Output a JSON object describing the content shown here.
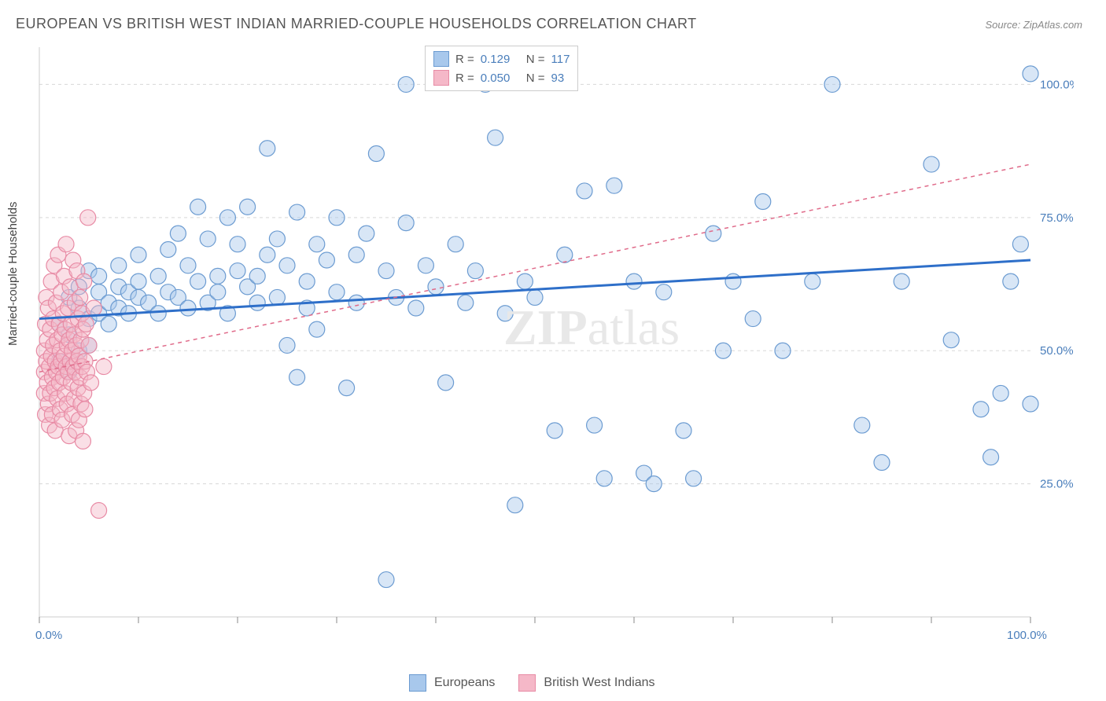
{
  "title": "EUROPEAN VS BRITISH WEST INDIAN MARRIED-COUPLE HOUSEHOLDS CORRELATION CHART",
  "source": "Source: ZipAtlas.com",
  "watermark": "ZIPatlas",
  "ylabel": "Married-couple Households",
  "chart": {
    "type": "scatter",
    "background_color": "#ffffff",
    "grid_color": "#d8d8d8",
    "border_color": "#cccccc",
    "tick_color": "#888888",
    "axis_text_color": "#4a7ebb",
    "xlim": [
      0,
      100
    ],
    "ylim": [
      0,
      107
    ],
    "x_ticks": [
      0,
      10,
      20,
      30,
      40,
      50,
      60,
      70,
      80,
      90,
      100
    ],
    "y_grid_vals": [
      25,
      50,
      75,
      100
    ],
    "x_labels": [
      {
        "val": 0,
        "text": "0.0%"
      },
      {
        "val": 100,
        "text": "100.0%"
      }
    ],
    "y_labels": [
      {
        "val": 25,
        "text": "25.0%"
      },
      {
        "val": 50,
        "text": "50.0%"
      },
      {
        "val": 75,
        "text": "75.0%"
      },
      {
        "val": 100,
        "text": "100.0%"
      }
    ],
    "marker_radius": 10,
    "marker_opacity": 0.45,
    "series": [
      {
        "name": "Europeans",
        "color_fill": "#a8c8ec",
        "color_stroke": "#6b9bd1",
        "trend_color": "#2e6fc9",
        "trend_width": 3,
        "trend_dash": "none",
        "R": "0.129",
        "N": "117",
        "trend": {
          "x1": 0,
          "y1": 56,
          "x2": 100,
          "y2": 67
        },
        "points": [
          [
            2,
            55
          ],
          [
            2,
            48
          ],
          [
            3,
            60
          ],
          [
            3,
            53
          ],
          [
            3,
            46
          ],
          [
            4,
            58
          ],
          [
            4,
            62
          ],
          [
            4,
            50
          ],
          [
            5,
            65
          ],
          [
            5,
            56
          ],
          [
            5,
            51
          ],
          [
            6,
            61
          ],
          [
            6,
            57
          ],
          [
            6,
            64
          ],
          [
            7,
            59
          ],
          [
            7,
            55
          ],
          [
            8,
            62
          ],
          [
            8,
            66
          ],
          [
            8,
            58
          ],
          [
            9,
            61
          ],
          [
            9,
            57
          ],
          [
            10,
            60
          ],
          [
            10,
            63
          ],
          [
            10,
            68
          ],
          [
            11,
            59
          ],
          [
            12,
            64
          ],
          [
            12,
            57
          ],
          [
            13,
            61
          ],
          [
            13,
            69
          ],
          [
            14,
            60
          ],
          [
            14,
            72
          ],
          [
            15,
            58
          ],
          [
            15,
            66
          ],
          [
            16,
            63
          ],
          [
            16,
            77
          ],
          [
            17,
            59
          ],
          [
            17,
            71
          ],
          [
            18,
            64
          ],
          [
            18,
            61
          ],
          [
            19,
            75
          ],
          [
            19,
            57
          ],
          [
            20,
            65
          ],
          [
            20,
            70
          ],
          [
            21,
            62
          ],
          [
            21,
            77
          ],
          [
            22,
            64
          ],
          [
            22,
            59
          ],
          [
            23,
            68
          ],
          [
            23,
            88
          ],
          [
            24,
            60
          ],
          [
            24,
            71
          ],
          [
            25,
            51
          ],
          [
            25,
            66
          ],
          [
            26,
            76
          ],
          [
            26,
            45
          ],
          [
            27,
            63
          ],
          [
            27,
            58
          ],
          [
            28,
            70
          ],
          [
            28,
            54
          ],
          [
            29,
            67
          ],
          [
            30,
            61
          ],
          [
            30,
            75
          ],
          [
            31,
            43
          ],
          [
            32,
            59
          ],
          [
            32,
            68
          ],
          [
            33,
            72
          ],
          [
            34,
            87
          ],
          [
            35,
            65
          ],
          [
            35,
            7
          ],
          [
            36,
            60
          ],
          [
            37,
            100
          ],
          [
            37,
            74
          ],
          [
            38,
            58
          ],
          [
            39,
            66
          ],
          [
            40,
            62
          ],
          [
            41,
            44
          ],
          [
            42,
            70
          ],
          [
            43,
            59
          ],
          [
            44,
            65
          ],
          [
            45,
            100
          ],
          [
            46,
            90
          ],
          [
            47,
            57
          ],
          [
            48,
            21
          ],
          [
            49,
            63
          ],
          [
            50,
            60
          ],
          [
            52,
            35
          ],
          [
            53,
            68
          ],
          [
            55,
            80
          ],
          [
            56,
            36
          ],
          [
            57,
            26
          ],
          [
            58,
            81
          ],
          [
            60,
            63
          ],
          [
            61,
            27
          ],
          [
            62,
            25
          ],
          [
            63,
            61
          ],
          [
            65,
            35
          ],
          [
            66,
            26
          ],
          [
            68,
            72
          ],
          [
            69,
            50
          ],
          [
            70,
            63
          ],
          [
            72,
            56
          ],
          [
            73,
            78
          ],
          [
            75,
            50
          ],
          [
            78,
            63
          ],
          [
            80,
            100
          ],
          [
            83,
            36
          ],
          [
            85,
            29
          ],
          [
            87,
            63
          ],
          [
            90,
            85
          ],
          [
            92,
            52
          ],
          [
            95,
            39
          ],
          [
            96,
            30
          ],
          [
            97,
            42
          ],
          [
            98,
            63
          ],
          [
            99,
            70
          ],
          [
            100,
            102
          ],
          [
            100,
            40
          ]
        ]
      },
      {
        "name": "British West Indians",
        "color_fill": "#f5b8c8",
        "color_stroke": "#e88ba5",
        "trend_color": "#e06b8a",
        "trend_width": 1.5,
        "trend_dash": "5,5",
        "R": "0.050",
        "N": "93",
        "trend": {
          "x1": 0,
          "y1": 46,
          "x2": 100,
          "y2": 85
        },
        "points": [
          [
            0.5,
            46
          ],
          [
            0.5,
            50
          ],
          [
            0.5,
            42
          ],
          [
            0.6,
            55
          ],
          [
            0.6,
            38
          ],
          [
            0.7,
            48
          ],
          [
            0.7,
            60
          ],
          [
            0.8,
            44
          ],
          [
            0.8,
            52
          ],
          [
            0.9,
            40
          ],
          [
            0.9,
            58
          ],
          [
            1.0,
            47
          ],
          [
            1.0,
            36
          ],
          [
            1.1,
            54
          ],
          [
            1.1,
            42
          ],
          [
            1.2,
            63
          ],
          [
            1.2,
            49
          ],
          [
            1.3,
            45
          ],
          [
            1.3,
            38
          ],
          [
            1.4,
            56
          ],
          [
            1.4,
            51
          ],
          [
            1.5,
            43
          ],
          [
            1.5,
            66
          ],
          [
            1.6,
            48
          ],
          [
            1.6,
            35
          ],
          [
            1.7,
            59
          ],
          [
            1.7,
            46
          ],
          [
            1.8,
            52
          ],
          [
            1.8,
            41
          ],
          [
            1.9,
            68
          ],
          [
            1.9,
            47
          ],
          [
            2.0,
            55
          ],
          [
            2.0,
            44
          ],
          [
            2.1,
            50
          ],
          [
            2.1,
            39
          ],
          [
            2.2,
            61
          ],
          [
            2.2,
            48
          ],
          [
            2.3,
            53
          ],
          [
            2.3,
            37
          ],
          [
            2.4,
            57
          ],
          [
            2.4,
            45
          ],
          [
            2.5,
            64
          ],
          [
            2.5,
            49
          ],
          [
            2.6,
            42
          ],
          [
            2.6,
            54
          ],
          [
            2.7,
            47
          ],
          [
            2.7,
            70
          ],
          [
            2.8,
            51
          ],
          [
            2.8,
            40
          ],
          [
            2.9,
            58
          ],
          [
            2.9,
            46
          ],
          [
            3.0,
            34
          ],
          [
            3.0,
            52
          ],
          [
            3.1,
            48
          ],
          [
            3.1,
            62
          ],
          [
            3.2,
            44
          ],
          [
            3.2,
            55
          ],
          [
            3.3,
            38
          ],
          [
            3.3,
            50
          ],
          [
            3.4,
            67
          ],
          [
            3.4,
            47
          ],
          [
            3.5,
            53
          ],
          [
            3.5,
            41
          ],
          [
            3.6,
            59
          ],
          [
            3.6,
            46
          ],
          [
            3.7,
            35
          ],
          [
            3.7,
            51
          ],
          [
            3.8,
            48
          ],
          [
            3.8,
            65
          ],
          [
            3.9,
            43
          ],
          [
            3.9,
            56
          ],
          [
            4.0,
            49
          ],
          [
            4.0,
            37
          ],
          [
            4.1,
            60
          ],
          [
            4.1,
            45
          ],
          [
            4.2,
            52
          ],
          [
            4.2,
            40
          ],
          [
            4.3,
            57
          ],
          [
            4.3,
            47
          ],
          [
            4.4,
            33
          ],
          [
            4.4,
            54
          ],
          [
            4.5,
            42
          ],
          [
            4.5,
            63
          ],
          [
            4.6,
            48
          ],
          [
            4.6,
            39
          ],
          [
            4.7,
            55
          ],
          [
            4.8,
            46
          ],
          [
            4.9,
            75
          ],
          [
            5.0,
            51
          ],
          [
            5.2,
            44
          ],
          [
            5.5,
            58
          ],
          [
            6.0,
            20
          ],
          [
            6.5,
            47
          ]
        ]
      }
    ],
    "legend_bottom": [
      {
        "label": "Europeans",
        "fill": "#a8c8ec",
        "stroke": "#6b9bd1"
      },
      {
        "label": "British West Indians",
        "fill": "#f5b8c8",
        "stroke": "#e88ba5"
      }
    ]
  }
}
